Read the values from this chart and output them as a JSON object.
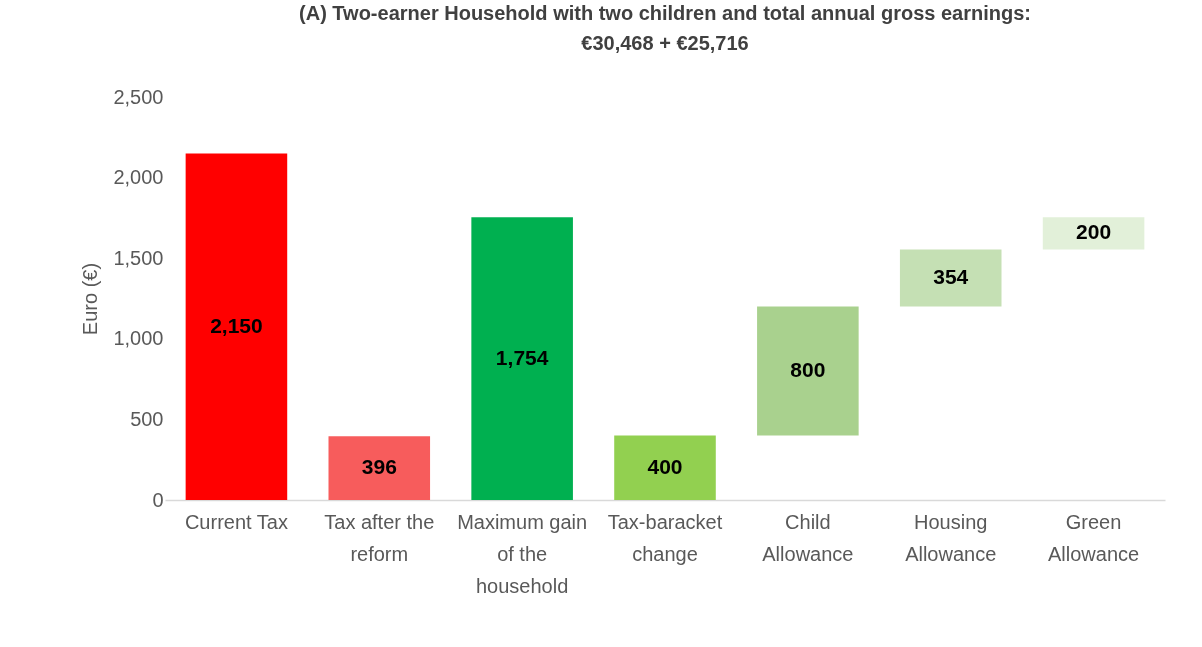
{
  "chart_data": {
    "type": "bar",
    "title": "(A) Two-earner Household with two children and total annual gross earnings: €30,468 + €25,716",
    "ylabel": "Euro (€)",
    "categories": [
      "Current Tax",
      "Tax after the reform",
      "Maximum gain of the household",
      "Tax-baracket change",
      "Child Allowance",
      "Housing Allowance",
      "Green Allowance"
    ],
    "values": [
      2150,
      396,
      1754,
      400,
      800,
      354,
      200
    ],
    "base": [
      0,
      0,
      0,
      0,
      400,
      1200,
      1554
    ],
    "colors": [
      "#ff0000",
      "#f75c5c",
      "#00b050",
      "#92d050",
      "#a9d18e",
      "#c5e0b4",
      "#e2f0d9"
    ],
    "value_labels": [
      "2,150",
      "396",
      "1,754",
      "400",
      "800",
      "354",
      "200"
    ],
    "ylim": [
      0,
      2500
    ],
    "yticks": [
      0,
      500,
      {
        "value": 1000,
        "label": "1,000"
      },
      {
        "value": 1500,
        "label": "1,500"
      },
      {
        "value": 2000,
        "label": "2,000"
      },
      {
        "value": 2500,
        "label": "2,500"
      }
    ],
    "grid": false
  }
}
